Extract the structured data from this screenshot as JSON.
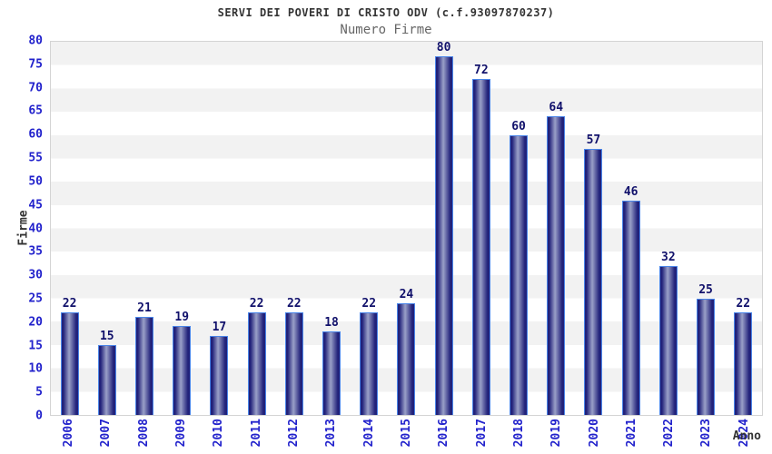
{
  "header": {
    "title": "SERVI DEI POVERI DI CRISTO ODV (c.f.93097870237)",
    "subtitle": "Numero Firme"
  },
  "chart_data": {
    "type": "bar",
    "title": "SERVI DEI POVERI DI CRISTO ODV (c.f.93097870237)",
    "subtitle": "Numero Firme",
    "xlabel": "Anno",
    "ylabel": "Firme",
    "categories": [
      "2006",
      "2007",
      "2008",
      "2009",
      "2010",
      "2011",
      "2012",
      "2013",
      "2014",
      "2015",
      "2016",
      "2017",
      "2018",
      "2019",
      "2020",
      "2021",
      "2022",
      "2023",
      "2024"
    ],
    "values": [
      22,
      15,
      21,
      19,
      17,
      22,
      22,
      18,
      22,
      24,
      80,
      72,
      60,
      64,
      57,
      46,
      32,
      25,
      22
    ],
    "ylim": [
      0,
      80
    ],
    "ytick_step": 5,
    "grid": "horizontal-bands-alternating",
    "legend_position": "none",
    "bar_value_labels": true,
    "x_tick_rotation": -90
  },
  "colors": {
    "tick_blue": "#2222cc",
    "bar_border_blue": "#4a85e8",
    "bar_dark_navy": "#22227a",
    "bar_light_center": "#9aa0c8",
    "value_label_navy": "#11116b",
    "band_gray": "#f2f2f2",
    "plot_border_gray": "#d4d4d4",
    "title_color": "#333333",
    "subtitle_color": "#666666"
  }
}
